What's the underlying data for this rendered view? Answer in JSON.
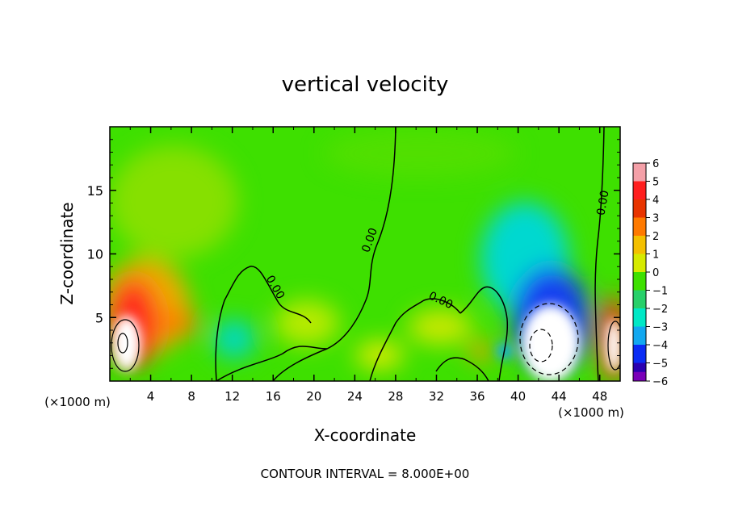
{
  "chart_data": {
    "type": "heatmap",
    "title": "vertical velocity",
    "xlabel": "X-coordinate",
    "ylabel": "Z-coordinate",
    "x_unit_label": "(×1000 m)",
    "z_unit_label": "(×1000 m)",
    "xlim": [
      0,
      50
    ],
    "ylim": [
      0,
      20
    ],
    "x_ticks": [
      4,
      8,
      12,
      16,
      20,
      24,
      28,
      32,
      36,
      40,
      44,
      48
    ],
    "y_ticks": [
      5,
      10,
      15
    ],
    "footer": "CONTOUR INTERVAL = 8.000E+00",
    "contour_level_label": "0.00",
    "colorbar": {
      "levels": [
        6,
        5,
        4,
        3,
        2,
        1,
        0,
        -1,
        -2,
        -3,
        -4,
        -5,
        -6
      ],
      "colors": [
        "#f4a0a8",
        "#ff1f1f",
        "#e83400",
        "#ff7a00",
        "#f4c000",
        "#d6ea00",
        "#3ee000",
        "#28d06a",
        "#00e8c6",
        "#12a8f0",
        "#0a2cf4",
        "#2a00b0",
        "#7a00b8"
      ]
    },
    "features": [
      {
        "x": 1.5,
        "z": 3.5,
        "w": 6,
        "note": "strong updraft, left edge"
      },
      {
        "x": 5.5,
        "z": 5.0,
        "w": 3,
        "note": "orange updraft band"
      },
      {
        "x": 12.5,
        "z": 3.5,
        "w": -2,
        "note": "weak downdraft"
      },
      {
        "x": 43.5,
        "z": 3.5,
        "w": -6,
        "note": "strong downdraft core"
      },
      {
        "x": 49.5,
        "z": 3.0,
        "w": 6,
        "note": "updraft, right edge"
      }
    ]
  }
}
